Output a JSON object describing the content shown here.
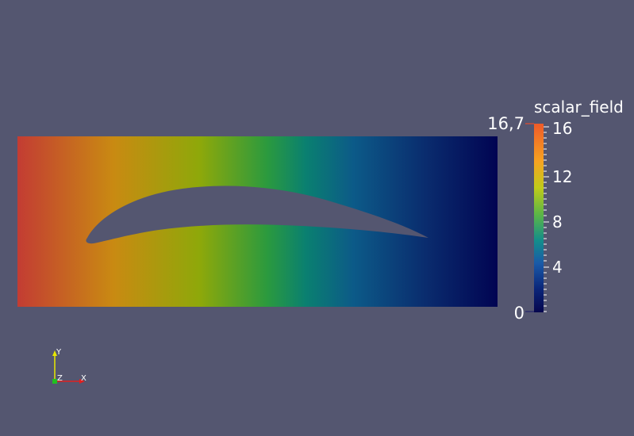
{
  "view": {
    "background": "#545670"
  },
  "domain_plot": {
    "field_name": "scalar_field",
    "gradient_colors": [
      "#c33c33",
      "#c98a12",
      "#8ea80a",
      "#1f9443",
      "#0a7a74",
      "#0c5488",
      "#0a2c6e",
      "#020550"
    ],
    "hole_color": "#545670"
  },
  "colorbar": {
    "title": "scalar_field",
    "max_label": "16,7",
    "min_label": "0",
    "tick_labels": [
      "16",
      "12",
      "8",
      "4"
    ],
    "range": [
      0,
      16.7
    ],
    "tick_values": [
      16,
      12,
      8,
      4
    ],
    "colors": [
      "#f05a28",
      "#f6a321",
      "#bfcb1a",
      "#5cb646",
      "#138e8b",
      "#1a5aa8",
      "#0a2478",
      "#06074e"
    ]
  },
  "axes_widget": {
    "y_label": "Y",
    "z_label": "Z",
    "x_label": "X",
    "y_color": "#e8e800",
    "x_color": "#e02020",
    "z_color": "#20c020"
  }
}
